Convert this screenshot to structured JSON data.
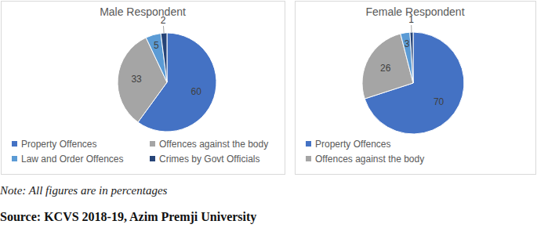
{
  "chart_data": [
    {
      "type": "pie",
      "title": "Male Respondent",
      "categories": [
        "Property Offences",
        "Offences against the body",
        "Law and Order Offences",
        "Crimes by Govt Officials"
      ],
      "values": [
        60,
        33,
        5,
        2
      ],
      "colors": [
        "#4472c4",
        "#a5a5a5",
        "#5b9bd5",
        "#264478"
      ],
      "data_labels": true,
      "legend": "bottom"
    },
    {
      "type": "pie",
      "title": "Female Respondent",
      "categories": [
        "Property Offences",
        "Offences against the body",
        null,
        null
      ],
      "values": [
        70,
        26,
        3,
        1
      ],
      "colors": [
        "#4472c4",
        "#a5a5a5",
        "#5b9bd5",
        "#264478"
      ],
      "data_labels": true,
      "legend": "bottom"
    }
  ],
  "note": "Note: All figures are in percentages",
  "source": "Source: KCVS 2018-19, Azim Premji University"
}
